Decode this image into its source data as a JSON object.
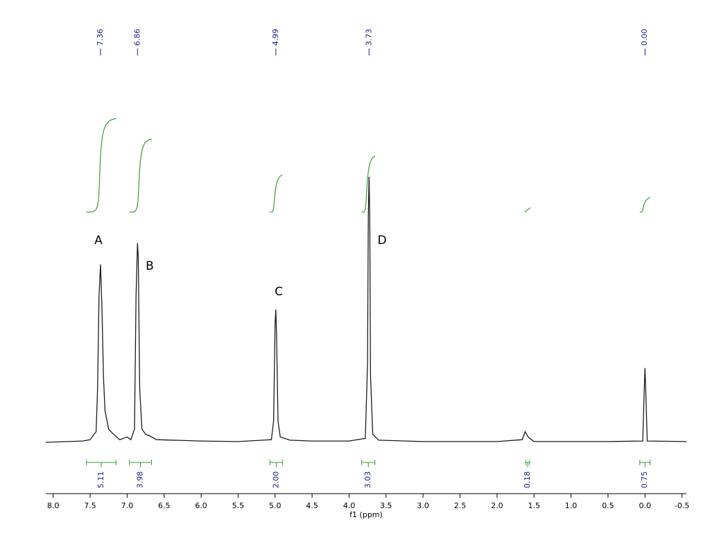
{
  "chart_data": {
    "type": "spectrum",
    "x_label": "f1 (ppm)",
    "xlim": [
      8.1,
      -0.56
    ],
    "xticks": [
      {
        "value": 8,
        "label": "8.0"
      },
      7.5,
      {
        "value": 7,
        "label": "7.0"
      },
      6.5,
      {
        "value": 6,
        "label": "6.0"
      },
      5.5,
      {
        "value": 5,
        "label": "5.0"
      },
      4.5,
      {
        "value": 4,
        "label": "4.0"
      },
      3.5,
      {
        "value": 3,
        "label": "3.0"
      },
      2.5,
      {
        "value": 2,
        "label": "2.0"
      },
      1.5,
      {
        "value": 1,
        "label": "1.0"
      },
      0.5,
      {
        "value": 0,
        "label": "0.0"
      },
      -0.5
    ],
    "ylim": [
      0,
      100
    ],
    "series": [
      {
        "color": "#1a1a1a",
        "x": [
          8.1,
          7.6,
          7.5,
          7.46,
          7.42,
          7.4,
          7.38,
          7.36,
          7.34,
          7.32,
          7.3,
          7.25,
          7.2,
          7.1,
          7.0,
          6.95,
          6.9,
          6.88,
          6.86,
          6.85,
          6.83,
          6.8,
          6.75,
          6.7,
          6.6,
          6.0,
          5.5,
          5.05,
          5.02,
          5.0,
          4.99,
          4.98,
          4.96,
          4.93,
          4.8,
          4.5,
          4.0,
          3.78,
          3.75,
          3.74,
          3.73,
          3.72,
          3.71,
          3.68,
          3.6,
          3.0,
          2.0,
          1.66,
          1.62,
          1.58,
          1.5,
          1.0,
          0.5,
          0.03,
          0.01,
          0.0,
          -0.01,
          -0.03,
          -0.56
        ],
        "values": [
          0,
          0.5,
          1,
          2.5,
          4,
          20,
          55,
          67,
          50,
          25,
          12,
          5,
          3.5,
          1,
          2,
          1,
          5,
          55,
          75,
          70,
          20,
          5,
          3,
          2.5,
          1,
          0.5,
          0.3,
          1,
          8,
          45,
          50,
          40,
          8,
          2,
          0.8,
          0.5,
          0.5,
          1.5,
          30,
          85,
          100,
          85,
          25,
          3,
          0.8,
          0.3,
          0.3,
          1,
          4,
          2,
          0.3,
          0.3,
          0.3,
          0.5,
          20,
          28,
          20,
          0.5,
          0.3
        ]
      }
    ],
    "peaks": {
      "color": "#1a1a8c",
      "x": [
        7.36,
        6.86,
        4.99,
        3.73,
        0.0
      ],
      "value_labels": [
        "7.36",
        "6.86",
        "4.99",
        "3.73",
        "0.00"
      ]
    },
    "integrals": {
      "color": "#3a9a3a",
      "label_color": "#1a1a8c",
      "from": [
        7.55,
        6.97,
        5.07,
        3.83,
        1.61,
        0.07
      ],
      "to": [
        7.15,
        6.67,
        4.9,
        3.65,
        1.56,
        -0.07
      ],
      "values": [
        5.11,
        3.98,
        2.0,
        3.03,
        0.18,
        0.75
      ],
      "value_labels": [
        "5.11",
        "3.98",
        "2.00",
        "3.03",
        "0.18",
        "0.75"
      ]
    },
    "annotations": [
      "A",
      "B",
      "C",
      "D"
    ]
  }
}
